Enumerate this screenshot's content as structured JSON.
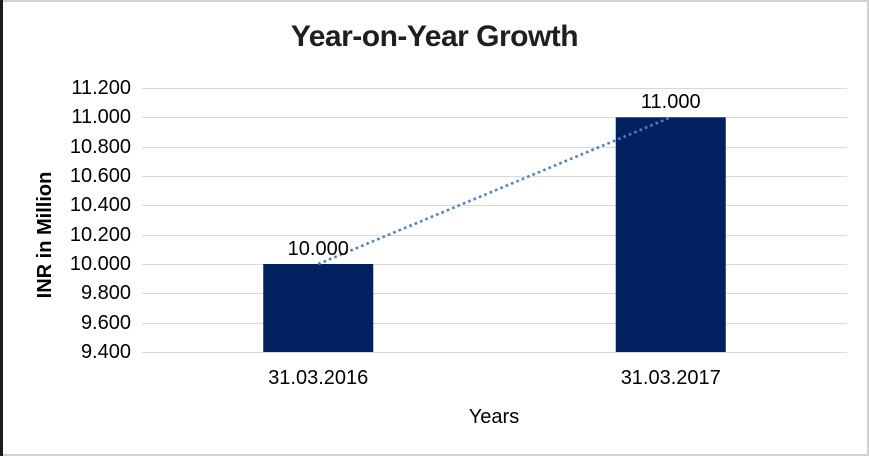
{
  "chart": {
    "title": "Year-on-Year Growth",
    "y_axis_title": "INR in Million",
    "x_axis_title": "Years"
  },
  "chart_data": {
    "type": "bar",
    "title": "Year-on-Year Growth",
    "xlabel": "Years",
    "ylabel": "INR in Million",
    "categories": [
      "31.03.2016",
      "31.03.2017"
    ],
    "values": [
      10000,
      11000
    ],
    "value_labels": [
      "10.000",
      "11.000"
    ],
    "ylim": [
      9400,
      11200
    ],
    "y_ticks": [
      9400,
      9600,
      9800,
      10000,
      10200,
      10400,
      10600,
      10800,
      11000,
      11200
    ],
    "y_tick_labels": [
      "9.400",
      "9.600",
      "9.800",
      "10.000",
      "10.200",
      "10.400",
      "10.600",
      "10.800",
      "11.000",
      "11.200"
    ],
    "grid": true,
    "legend": false,
    "trendline": {
      "style": "dotted",
      "from_value": 10000,
      "to_value": 11000
    },
    "colors": {
      "bar": "#002060",
      "trendline": "#4F81BD",
      "gridline": "#D9D9D9",
      "title_text": "#1F1F1F",
      "axis_text": "#000000"
    }
  }
}
